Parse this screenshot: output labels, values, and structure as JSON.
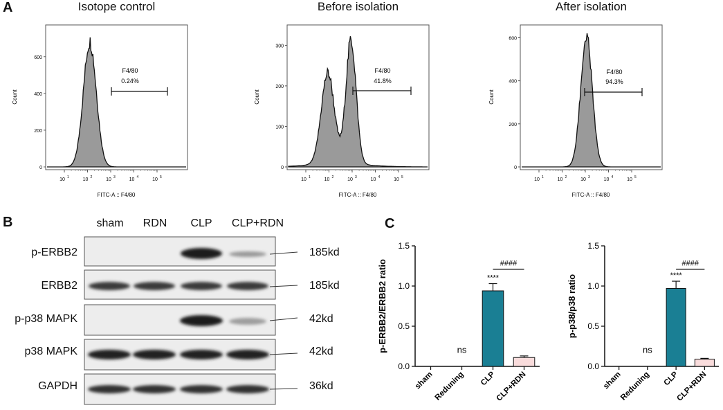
{
  "panel_letters": {
    "a": "A",
    "b": "B",
    "c": "C"
  },
  "flow": [
    {
      "title": "Isotope control",
      "gate_label": "F4/80",
      "gate_pct": "0.24%",
      "xlabel": "FITC-A :: F4/80",
      "ylabel": "Count",
      "y_ticks": [
        "0",
        "200",
        "400",
        "600"
      ],
      "y_max": 750
    },
    {
      "title": "Before isolation",
      "gate_label": "F4/80",
      "gate_pct": "41.8%",
      "xlabel": "FITC-A :: F4/80",
      "ylabel": "Count",
      "y_ticks": [
        "0",
        "100",
        "200",
        "300"
      ],
      "y_max": 340
    },
    {
      "title": "After isolation",
      "gate_label": "F4/80",
      "gate_pct": "94.3%",
      "xlabel": "FITC-A :: F4/80",
      "ylabel": "Count",
      "y_ticks": [
        "0",
        "200",
        "400",
        "600"
      ],
      "y_max": 640
    }
  ],
  "flow_x_ticks": [
    "10",
    "10",
    "10",
    "10",
    "10"
  ],
  "flow_x_exps": [
    "1",
    "2",
    "3",
    "4",
    "5"
  ],
  "western": {
    "columns": [
      "sham",
      "RDN",
      "CLP",
      "CLP+RDN"
    ],
    "rows": [
      {
        "label": "p-ERBB2",
        "kd": "185kd"
      },
      {
        "label": "ERBB2",
        "kd": "185kd"
      },
      {
        "label": "p-p38 MAPK",
        "kd": "42kd"
      },
      {
        "label": "p38 MAPK",
        "kd": "42kd"
      },
      {
        "label": "GAPDH",
        "kd": "36kd"
      }
    ]
  },
  "chart_data": [
    {
      "type": "bar",
      "title": "",
      "ylabel": "p-ERBB2/ERBB2 ratio",
      "categories": [
        "sham",
        "Reduning",
        "CLP",
        "CLP+RDN"
      ],
      "values": [
        0.0,
        0.0,
        0.94,
        0.11
      ],
      "errors": [
        0.0,
        0.0,
        0.09,
        0.02
      ],
      "ylim": [
        0,
        1.5
      ],
      "y_ticks": [
        "0.0",
        "0.5",
        "1.0",
        "1.5"
      ],
      "colors": [
        "#1a7f94",
        "#1a7f94",
        "#1a7f94",
        "#f9dcdc"
      ],
      "annotations": {
        "ns": "ns",
        "stars": "****",
        "hash": "####"
      }
    },
    {
      "type": "bar",
      "title": "",
      "ylabel": "p-p38/p38 ratio",
      "categories": [
        "sham",
        "Reduning",
        "CLP",
        "CLP+RDN"
      ],
      "values": [
        0.0,
        0.0,
        0.97,
        0.09
      ],
      "errors": [
        0.0,
        0.0,
        0.09,
        0.01
      ],
      "ylim": [
        0,
        1.5
      ],
      "y_ticks": [
        "0.0",
        "0.5",
        "1.0",
        "1.5"
      ],
      "colors": [
        "#1a7f94",
        "#1a7f94",
        "#1a7f94",
        "#f9dcdc"
      ],
      "annotations": {
        "ns": "ns",
        "stars": "****",
        "hash": "####"
      }
    }
  ]
}
